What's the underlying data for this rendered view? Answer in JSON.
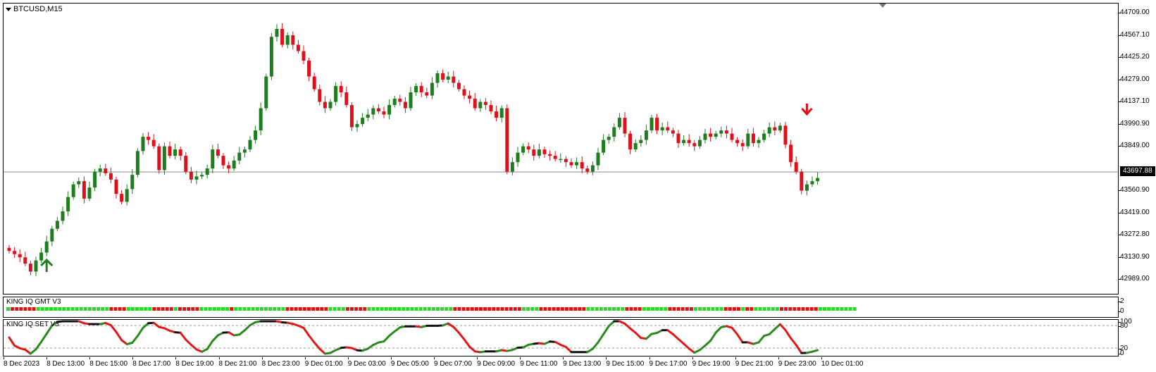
{
  "chart": {
    "symbol": "BTCUSD,M15",
    "current_price": "43697.88",
    "price_ticks": [
      "44709.00",
      "44567.10",
      "44425.20",
      "44279.00",
      "44137.10",
      "43990.90",
      "43849.00",
      "43697.88",
      "43560.90",
      "43419.00",
      "43272.80",
      "43130.90",
      "42989.00"
    ],
    "time_labels": [
      "8 Dec 2023",
      "8 Dec 13:00",
      "8 Dec 15:00",
      "8 Dec 17:00",
      "8 Dec 19:00",
      "8 Dec 21:00",
      "8 Dec 23:00",
      "9 Dec 01:00",
      "9 Dec 03:00",
      "9 Dec 05:00",
      "9 Dec 07:00",
      "9 Dec 09:00",
      "9 Dec 11:00",
      "9 Dec 13:00",
      "9 Dec 15:00",
      "9 Dec 17:00",
      "9 Dec 19:00",
      "9 Dec 21:00",
      "9 Dec 23:00",
      "10 Dec 01:00"
    ],
    "bull_color": "#1e7d1e",
    "bear_color": "#e0101a"
  },
  "chart_data": {
    "type": "candlestick",
    "ylim": [
      42930,
      44760
    ],
    "current_price": 43697.88,
    "closes": [
      43200,
      43180,
      43160,
      43120,
      43070,
      43140,
      43190,
      43260,
      43340,
      43390,
      43450,
      43540,
      43620,
      43640,
      43530,
      43600,
      43700,
      43720,
      43690,
      43650,
      43560,
      43510,
      43590,
      43680,
      43830,
      43920,
      43900,
      43860,
      43710,
      43860,
      43800,
      43840,
      43800,
      43700,
      43650,
      43670,
      43680,
      43720,
      43840,
      43800,
      43740,
      43720,
      43770,
      43820,
      43840,
      43900,
      43960,
      44100,
      44300,
      44550,
      44600,
      44500,
      44560,
      44500,
      44460,
      44400,
      44300,
      44220,
      44140,
      44100,
      44140,
      44240,
      44200,
      44120,
      43980,
      44000,
      44040,
      44060,
      44100,
      44080,
      44060,
      44120,
      44160,
      44140,
      44100,
      44200,
      44240,
      44200,
      44180,
      44260,
      44320,
      44280,
      44300,
      44260,
      44220,
      44180,
      44160,
      44100,
      44140,
      44120,
      44080,
      44040,
      44100,
      43700,
      43760,
      43820,
      43860,
      43840,
      43800,
      43840,
      43810,
      43800,
      43780,
      43780,
      43760,
      43740,
      43760,
      43720,
      43700,
      43740,
      43820,
      43900,
      43920,
      43980,
      44040,
      43940,
      43840,
      43880,
      43900,
      43960,
      44040,
      43960,
      43980,
      43960,
      43940,
      43880,
      43900,
      43880,
      43860,
      43900,
      43940,
      43920,
      43940,
      43960,
      43940,
      43900,
      43880,
      43860,
      43940,
      43880,
      43900,
      43940,
      43980,
      43960,
      43990,
      43870,
      43760,
      43700,
      43580,
      43620,
      43640,
      43660
    ],
    "signals": [
      {
        "type": "buy",
        "index": 7
      },
      {
        "type": "sell",
        "index": 149
      }
    ],
    "indicators": [
      {
        "name": "KING IQ GMT V3",
        "scale": [
          "2",
          "0"
        ]
      },
      {
        "name": "KING IQ SET V3",
        "scale": [
          "100",
          "80",
          "20",
          "0"
        ],
        "levels": [
          80,
          20
        ]
      }
    ]
  },
  "indicator_gmt": {
    "label": "KING IQ GMT V3",
    "scale_top": "2",
    "scale_bottom": "0"
  },
  "indicator_set": {
    "label": "KING IQ SET V3",
    "scale_top": "100",
    "scale_80": "80",
    "scale_20": "20",
    "scale_bottom": "0"
  }
}
